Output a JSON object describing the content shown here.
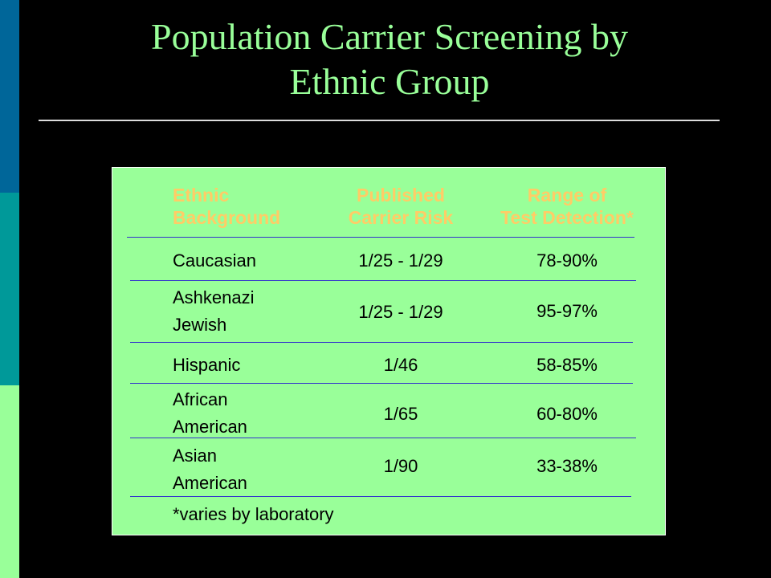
{
  "slide": {
    "title": "Population Carrier Screening by\nEthnic Group"
  },
  "colors": {
    "background": "#000000",
    "title": "#99ff99",
    "panel": "#99ff99",
    "header_text": "#ffcc66",
    "rule": "#3333cc"
  },
  "table": {
    "headers": [
      "Ethnic\nBackground",
      "Published\nCarrier Risk",
      "Range of\nTest Detection*"
    ],
    "rows": [
      [
        "Caucasian",
        "1/25 - 1/29",
        "78-90%"
      ],
      [
        "Ashkenazi\nJewish",
        "1/25 - 1/29",
        "95-97%"
      ],
      [
        "Hispanic",
        "1/46",
        "58-85%"
      ],
      [
        "African\nAmerican",
        "1/65",
        "60-80%"
      ],
      [
        "Asian\nAmerican",
        "1/90",
        "33-38%"
      ]
    ],
    "footnote": "*varies by laboratory"
  }
}
